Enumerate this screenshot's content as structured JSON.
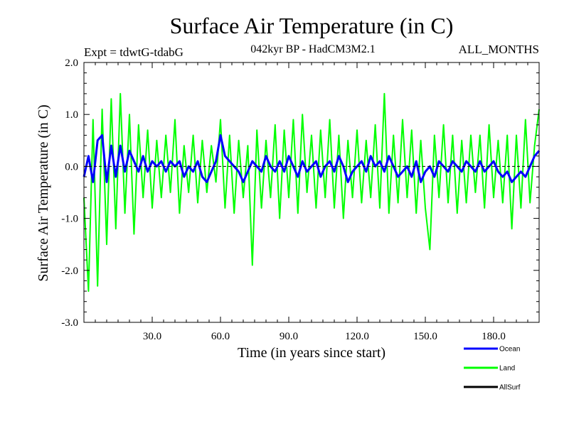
{
  "chart_data": {
    "type": "line",
    "title": "Surface Air Temperature (in C)",
    "subtitle_left": "Expt = tdwtG-tdabG",
    "subtitle_center": "042kyr BP - HadCM3M2.1",
    "subtitle_right": "ALL_MONTHS",
    "xlabel": "Time (in years since start)",
    "ylabel": "Surface Air Temperature (in C)",
    "xlim": [
      0,
      200
    ],
    "ylim": [
      -3.0,
      2.0
    ],
    "xticks": [
      30,
      60,
      90,
      120,
      150,
      180
    ],
    "xtick_labels": [
      "30.0",
      "60.0",
      "90.0",
      "120.0",
      "150.0",
      "180.0"
    ],
    "yticks": [
      -3,
      -2,
      -1,
      0,
      1,
      2
    ],
    "ytick_labels": [
      "-3.0",
      "-2.0",
      "-1.0",
      "0.0",
      "1.0",
      "2.0"
    ],
    "zero_line": 0.0,
    "series": [
      {
        "name": "Land",
        "color": "#00ff00",
        "x": [
          0,
          2,
          4,
          6,
          8,
          10,
          12,
          14,
          16,
          18,
          20,
          22,
          24,
          26,
          28,
          30,
          32,
          34,
          36,
          38,
          40,
          42,
          44,
          46,
          48,
          50,
          52,
          54,
          56,
          58,
          60,
          62,
          64,
          66,
          68,
          70,
          72,
          74,
          76,
          78,
          80,
          82,
          84,
          86,
          88,
          90,
          92,
          94,
          96,
          98,
          100,
          102,
          104,
          106,
          108,
          110,
          112,
          114,
          116,
          118,
          120,
          122,
          124,
          126,
          128,
          130,
          132,
          134,
          136,
          138,
          140,
          142,
          144,
          146,
          148,
          150,
          152,
          154,
          156,
          158,
          160,
          162,
          164,
          166,
          168,
          170,
          172,
          174,
          176,
          178,
          180,
          182,
          184,
          186,
          188,
          190,
          192,
          194,
          196,
          198,
          200
        ],
        "values": [
          -0.6,
          -2.4,
          0.9,
          -2.3,
          1.1,
          -1.5,
          1.3,
          -1.2,
          1.4,
          -0.9,
          1.0,
          -1.3,
          0.8,
          -0.6,
          0.7,
          -0.8,
          0.5,
          -0.6,
          0.6,
          -0.5,
          0.9,
          -0.9,
          0.4,
          -0.5,
          0.6,
          -0.7,
          0.5,
          -0.5,
          0.4,
          -0.3,
          0.9,
          -0.8,
          0.6,
          -0.9,
          0.5,
          -0.6,
          0.4,
          -1.9,
          0.7,
          -0.8,
          0.5,
          -0.6,
          0.8,
          -1.0,
          0.7,
          -0.6,
          0.9,
          -0.9,
          1.0,
          -0.5,
          0.6,
          -0.8,
          0.7,
          -0.6,
          0.9,
          -0.8,
          0.6,
          -1.0,
          0.5,
          -0.6,
          0.7,
          -0.7,
          0.5,
          -0.6,
          0.8,
          -0.8,
          1.4,
          -0.9,
          0.6,
          -0.7,
          0.9,
          -0.6,
          0.7,
          -0.9,
          0.5,
          -0.8,
          -1.6,
          0.6,
          -0.6,
          0.8,
          -0.7,
          0.6,
          -0.9,
          0.5,
          -0.7,
          0.6,
          -0.5,
          0.6,
          -0.8,
          0.8,
          -0.6,
          0.5,
          -0.7,
          0.6,
          -1.2,
          0.6,
          -0.8,
          0.9,
          -0.7,
          0.4,
          1.1
        ]
      },
      {
        "name": "Ocean",
        "color": "#0000ff",
        "x": [
          0,
          2,
          4,
          6,
          8,
          10,
          12,
          14,
          16,
          18,
          20,
          22,
          24,
          26,
          28,
          30,
          32,
          34,
          36,
          38,
          40,
          42,
          44,
          46,
          48,
          50,
          52,
          54,
          56,
          58,
          60,
          62,
          64,
          66,
          68,
          70,
          72,
          74,
          76,
          78,
          80,
          82,
          84,
          86,
          88,
          90,
          92,
          94,
          96,
          98,
          100,
          102,
          104,
          106,
          108,
          110,
          112,
          114,
          116,
          118,
          120,
          122,
          124,
          126,
          128,
          130,
          132,
          134,
          136,
          138,
          140,
          142,
          144,
          146,
          148,
          150,
          152,
          154,
          156,
          158,
          160,
          162,
          164,
          166,
          168,
          170,
          172,
          174,
          176,
          178,
          180,
          182,
          184,
          186,
          188,
          190,
          192,
          194,
          196,
          198,
          200
        ],
        "values": [
          -0.2,
          0.2,
          -0.3,
          0.5,
          0.6,
          -0.3,
          0.4,
          -0.2,
          0.4,
          -0.1,
          0.3,
          0.1,
          -0.1,
          0.2,
          -0.1,
          0.1,
          0.0,
          0.1,
          -0.1,
          0.1,
          0.0,
          0.1,
          -0.2,
          0.0,
          -0.1,
          0.1,
          -0.2,
          -0.3,
          -0.1,
          0.1,
          0.6,
          0.2,
          0.1,
          0.0,
          -0.1,
          -0.3,
          -0.1,
          0.1,
          0.0,
          -0.1,
          0.2,
          0.0,
          -0.1,
          0.1,
          -0.1,
          0.2,
          0.0,
          -0.2,
          0.1,
          -0.1,
          0.0,
          0.1,
          -0.2,
          0.0,
          0.1,
          -0.1,
          0.2,
          0.0,
          -0.3,
          -0.1,
          0.0,
          0.1,
          -0.1,
          0.2,
          0.0,
          0.1,
          -0.1,
          0.2,
          0.0,
          -0.2,
          -0.1,
          0.0,
          -0.2,
          0.1,
          -0.3,
          -0.1,
          0.0,
          -0.2,
          0.1,
          0.0,
          -0.1,
          0.1,
          0.0,
          -0.1,
          0.1,
          0.0,
          -0.1,
          0.1,
          -0.1,
          0.0,
          0.1,
          -0.1,
          -0.2,
          -0.1,
          -0.3,
          -0.2,
          -0.1,
          -0.2,
          0.0,
          0.2,
          0.3
        ]
      },
      {
        "name": "AllSurf",
        "color": "#000000",
        "x": [],
        "values": []
      }
    ],
    "legend": {
      "placement": "bottom-right",
      "entries": [
        "Ocean",
        "Land",
        "AllSurf"
      ]
    }
  }
}
